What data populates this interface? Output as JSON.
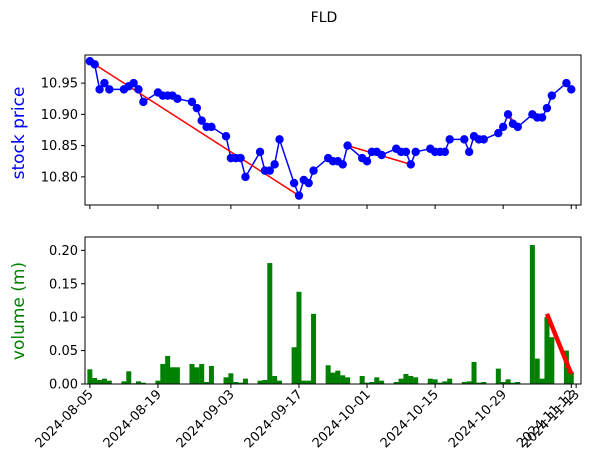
{
  "chart_data": [
    {
      "type": "line",
      "title": "FLD",
      "ylabel": "stock price",
      "ylabel_color": "#0000ff",
      "ylim": [
        10.755,
        10.995
      ],
      "yticks": [
        10.8,
        10.85,
        10.9,
        10.95
      ],
      "ytick_labels": [
        "10.80",
        "10.85",
        "10.90",
        "10.95"
      ],
      "grid": false,
      "series": [
        {
          "color": "#0000ff",
          "marker": "circle",
          "points": [
            [
              "2024-08-05",
              10.985
            ],
            [
              "2024-08-06",
              10.98
            ],
            [
              "2024-08-07",
              10.94
            ],
            [
              "2024-08-08",
              10.95
            ],
            [
              "2024-08-09",
              10.94
            ],
            [
              "2024-08-12",
              10.94
            ],
            [
              "2024-08-13",
              10.945
            ],
            [
              "2024-08-14",
              10.95
            ],
            [
              "2024-08-15",
              10.94
            ],
            [
              "2024-08-16",
              10.92
            ],
            [
              "2024-08-19",
              10.935
            ],
            [
              "2024-08-20",
              10.93
            ],
            [
              "2024-08-21",
              10.93
            ],
            [
              "2024-08-22",
              10.93
            ],
            [
              "2024-08-23",
              10.925
            ],
            [
              "2024-08-26",
              10.92
            ],
            [
              "2024-08-27",
              10.91
            ],
            [
              "2024-08-28",
              10.89
            ],
            [
              "2024-08-29",
              10.88
            ],
            [
              "2024-08-30",
              10.88
            ],
            [
              "2024-09-02",
              10.865
            ],
            [
              "2024-09-03",
              10.83
            ],
            [
              "2024-09-04",
              10.83
            ],
            [
              "2024-09-05",
              10.83
            ],
            [
              "2024-09-06",
              10.8
            ],
            [
              "2024-09-09",
              10.84
            ],
            [
              "2024-09-10",
              10.81
            ],
            [
              "2024-09-11",
              10.81
            ],
            [
              "2024-09-12",
              10.82
            ],
            [
              "2024-09-13",
              10.86
            ],
            [
              "2024-09-16",
              10.79
            ],
            [
              "2024-09-17",
              10.77
            ],
            [
              "2024-09-18",
              10.795
            ],
            [
              "2024-09-19",
              10.79
            ],
            [
              "2024-09-20",
              10.81
            ],
            [
              "2024-09-23",
              10.83
            ],
            [
              "2024-09-24",
              10.825
            ],
            [
              "2024-09-25",
              10.825
            ],
            [
              "2024-09-26",
              10.82
            ],
            [
              "2024-09-27",
              10.85
            ],
            [
              "2024-09-30",
              10.83
            ],
            [
              "2024-10-01",
              10.825
            ],
            [
              "2024-10-02",
              10.84
            ],
            [
              "2024-10-03",
              10.84
            ],
            [
              "2024-10-04",
              10.835
            ],
            [
              "2024-10-07",
              10.845
            ],
            [
              "2024-10-08",
              10.84
            ],
            [
              "2024-10-09",
              10.84
            ],
            [
              "2024-10-10",
              10.82
            ],
            [
              "2024-10-11",
              10.84
            ],
            [
              "2024-10-14",
              10.845
            ],
            [
              "2024-10-15",
              10.84
            ],
            [
              "2024-10-16",
              10.84
            ],
            [
              "2024-10-17",
              10.84
            ],
            [
              "2024-10-18",
              10.86
            ],
            [
              "2024-10-21",
              10.86
            ],
            [
              "2024-10-22",
              10.84
            ],
            [
              "2024-10-23",
              10.865
            ],
            [
              "2024-10-24",
              10.86
            ],
            [
              "2024-10-25",
              10.86
            ],
            [
              "2024-10-28",
              10.87
            ],
            [
              "2024-10-29",
              10.88
            ],
            [
              "2024-10-30",
              10.9
            ],
            [
              "2024-10-31",
              10.885
            ],
            [
              "2024-11-01",
              10.88
            ],
            [
              "2024-11-04",
              10.9
            ],
            [
              "2024-11-05",
              10.895
            ],
            [
              "2024-11-06",
              10.895
            ],
            [
              "2024-11-07",
              10.91
            ],
            [
              "2024-11-08",
              10.93
            ],
            [
              "2024-11-11",
              10.95
            ],
            [
              "2024-11-12",
              10.94
            ]
          ]
        },
        {
          "color": "#ff0000",
          "marker": "none",
          "segments": [
            [
              [
                "2024-08-05",
                10.985
              ],
              [
                "2024-09-17",
                10.77
              ]
            ],
            [
              [
                "2024-09-27",
                10.85
              ],
              [
                "2024-10-10",
                10.82
              ]
            ],
            [
              [
                "2024-10-30",
                10.9
              ],
              [
                "2024-11-01",
                10.88
              ]
            ],
            [
              [
                "2024-11-11",
                10.95
              ],
              [
                "2024-11-12",
                10.94
              ]
            ]
          ]
        }
      ]
    },
    {
      "type": "bar",
      "ylabel": "volume (m)",
      "ylabel_color": "#008000",
      "ylim": [
        0,
        0.22
      ],
      "yticks": [
        0.0,
        0.05,
        0.1,
        0.15,
        0.2
      ],
      "ytick_labels": [
        "0.00",
        "0.05",
        "0.10",
        "0.15",
        "0.20"
      ],
      "grid": false,
      "bar_color": "#008000",
      "trend_color": "#ff0000",
      "trend": [
        [
          "2024-11-07",
          0.105
        ],
        [
          "2024-11-12",
          0.015
        ]
      ],
      "values": [
        0.022,
        0.009,
        0.006,
        0.008,
        0.005,
        0.004,
        0.019,
        0.001,
        0.004,
        0.002,
        0.005,
        0.03,
        0.042,
        0.025,
        0.025,
        0.03,
        0.025,
        0.03,
        0.003,
        0.027,
        0.01,
        0.016,
        0.003,
        0.002,
        0.008,
        0.005,
        0.006,
        0.181,
        0.012,
        0.005,
        0.055,
        0.138,
        0.005,
        0.005,
        0.105,
        0.028,
        0.017,
        0.02,
        0.013,
        0.01,
        0.012,
        0.002,
        0.003,
        0.01,
        0.005,
        0.003,
        0.008,
        0.015,
        0.012,
        0.01,
        0.008,
        0.007,
        0.002,
        0.004,
        0.008,
        0.003,
        0.004,
        0.033,
        0.002,
        0.003,
        0.023,
        0.003,
        0.007,
        0.002,
        0.003,
        0.208,
        0.038,
        0.008,
        0.1,
        0.07,
        0.05,
        0.018
      ]
    }
  ],
  "x_axis": {
    "ticks": [
      "2024-08-05",
      "2024-08-19",
      "2024-09-03",
      "2024-09-17",
      "2024-10-01",
      "2024-10-15",
      "2024-10-29",
      "2024-11-12",
      "2024-11-13"
    ],
    "xlim": [
      "2024-08-04",
      "2024-11-14"
    ]
  }
}
